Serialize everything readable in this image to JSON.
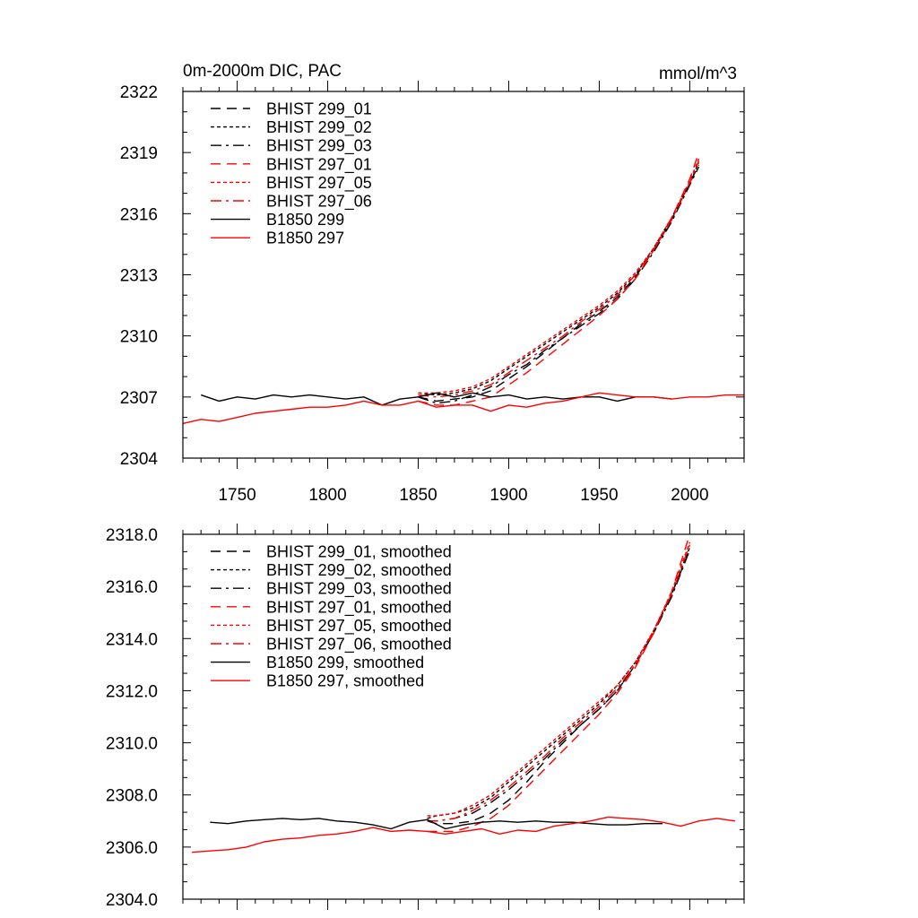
{
  "chart_data": [
    {
      "type": "line",
      "title": "0m-2000m DIC, PAC",
      "units": "mmol/m^3",
      "xlim": [
        1720,
        2030
      ],
      "ylim": [
        2304,
        2322
      ],
      "xticks": [
        1750,
        1800,
        1850,
        1900,
        1950,
        2000
      ],
      "yticks": [
        2304,
        2307,
        2310,
        2313,
        2316,
        2319,
        2322
      ],
      "ytick_decimals": 0,
      "show_xtick_labels": true,
      "legend_position": "top-left",
      "series": [
        {
          "name": "BHIST 299_01",
          "color": "#000000",
          "dash": "longdash",
          "x": [
            1850,
            1860,
            1870,
            1880,
            1890,
            1900,
            1910,
            1920,
            1930,
            1940,
            1950,
            1960,
            1970,
            1980,
            1990,
            2000,
            2005
          ],
          "y": [
            2307.0,
            2306.8,
            2306.9,
            2307.0,
            2307.3,
            2307.9,
            2308.5,
            2309.2,
            2309.9,
            2310.6,
            2311.2,
            2311.9,
            2312.9,
            2314.2,
            2315.7,
            2317.5,
            2318.4
          ]
        },
        {
          "name": "BHIST 299_02",
          "color": "#000000",
          "dash": "dotted",
          "x": [
            1850,
            1860,
            1870,
            1880,
            1890,
            1900,
            1910,
            1920,
            1930,
            1940,
            1950,
            1960,
            1970,
            1980,
            1990,
            2000,
            2005
          ],
          "y": [
            2307.2,
            2307.1,
            2307.2,
            2307.4,
            2307.8,
            2308.4,
            2309.0,
            2309.6,
            2310.2,
            2310.8,
            2311.4,
            2312.1,
            2313.0,
            2314.3,
            2315.8,
            2317.5,
            2318.5
          ]
        },
        {
          "name": "BHIST 299_03",
          "color": "#000000",
          "dash": "dashdot",
          "x": [
            1850,
            1860,
            1870,
            1880,
            1890,
            1900,
            1910,
            1920,
            1930,
            1940,
            1950,
            1960,
            1970,
            1980,
            1990,
            2000,
            2005
          ],
          "y": [
            2307.0,
            2306.7,
            2306.8,
            2307.1,
            2307.5,
            2308.1,
            2308.6,
            2309.3,
            2309.9,
            2310.5,
            2311.1,
            2311.8,
            2312.8,
            2314.1,
            2315.6,
            2317.4,
            2318.3
          ]
        },
        {
          "name": "BHIST 297_01",
          "color": "#ff0000",
          "dash": "longdash",
          "x": [
            1850,
            1860,
            1870,
            1880,
            1890,
            1900,
            1910,
            1920,
            1930,
            1940,
            1950,
            1960,
            1970,
            1980,
            1990,
            2000,
            2005
          ],
          "y": [
            2306.8,
            2306.6,
            2306.6,
            2306.8,
            2307.0,
            2307.6,
            2308.2,
            2308.9,
            2309.6,
            2310.3,
            2311.0,
            2311.8,
            2312.8,
            2314.2,
            2315.8,
            2317.7,
            2319.0
          ]
        },
        {
          "name": "BHIST 297_05",
          "color": "#ff0000",
          "dash": "dotted",
          "x": [
            1850,
            1860,
            1870,
            1880,
            1890,
            1900,
            1910,
            1920,
            1930,
            1940,
            1950,
            1960,
            1970,
            1980,
            1990,
            2000,
            2005
          ],
          "y": [
            2307.2,
            2307.2,
            2307.3,
            2307.5,
            2307.9,
            2308.5,
            2309.1,
            2309.7,
            2310.3,
            2310.9,
            2311.5,
            2312.2,
            2313.1,
            2314.3,
            2315.8,
            2317.6,
            2318.7
          ]
        },
        {
          "name": "BHIST 297_06",
          "color": "#ff0000",
          "dash": "dashdot",
          "x": [
            1850,
            1860,
            1870,
            1880,
            1890,
            1900,
            1910,
            1920,
            1930,
            1940,
            1950,
            1960,
            1970,
            1980,
            1990,
            2000,
            2005
          ],
          "y": [
            2307.1,
            2307.0,
            2307.1,
            2307.3,
            2307.6,
            2308.2,
            2308.8,
            2309.4,
            2310.0,
            2310.7,
            2311.3,
            2312.0,
            2313.0,
            2314.2,
            2315.7,
            2317.5,
            2318.6
          ]
        },
        {
          "name": "B1850 299",
          "color": "#000000",
          "dash": "solid",
          "x": [
            1730,
            1740,
            1750,
            1760,
            1770,
            1780,
            1790,
            1800,
            1810,
            1820,
            1830,
            1840,
            1850,
            1860,
            1870,
            1880,
            1890,
            1900,
            1910,
            1920,
            1930,
            1940,
            1950,
            1960,
            1970,
            1980,
            1990
          ],
          "y": [
            2307.1,
            2306.8,
            2307.0,
            2306.9,
            2307.1,
            2307.0,
            2307.1,
            2307.0,
            2306.9,
            2307.0,
            2306.6,
            2306.9,
            2307.0,
            2307.2,
            2307.0,
            2307.2,
            2307.0,
            2307.1,
            2306.9,
            2307.0,
            2306.9,
            2307.0,
            2307.0,
            2306.8,
            2307.0,
            2307.0,
            2306.9
          ]
        },
        {
          "name": "B1850 297",
          "color": "#ff0000",
          "dash": "solid",
          "x": [
            1720,
            1730,
            1740,
            1750,
            1760,
            1770,
            1780,
            1790,
            1800,
            1810,
            1820,
            1830,
            1840,
            1850,
            1860,
            1870,
            1880,
            1890,
            1900,
            1910,
            1920,
            1930,
            1940,
            1950,
            1960,
            1970,
            1980,
            1990,
            2000,
            2010,
            2020,
            2030
          ],
          "y": [
            2305.7,
            2305.9,
            2305.8,
            2306.0,
            2306.2,
            2306.3,
            2306.4,
            2306.5,
            2306.5,
            2306.6,
            2306.8,
            2306.6,
            2306.6,
            2306.8,
            2306.5,
            2306.6,
            2306.6,
            2306.3,
            2306.6,
            2306.5,
            2306.7,
            2306.8,
            2307.0,
            2307.2,
            2307.1,
            2307.0,
            2307.0,
            2306.9,
            2307.0,
            2307.0,
            2307.1,
            2307.1
          ]
        }
      ]
    },
    {
      "type": "line",
      "title": "",
      "units": "",
      "xlim": [
        1720,
        2030
      ],
      "ylim": [
        2304,
        2318
      ],
      "xticks": [
        1750,
        1800,
        1850,
        1900,
        1950,
        2000
      ],
      "yticks": [
        2304.0,
        2306.0,
        2308.0,
        2310.0,
        2312.0,
        2314.0,
        2316.0,
        2318.0
      ],
      "ytick_decimals": 1,
      "show_xtick_labels": false,
      "legend_position": "top-left",
      "series": [
        {
          "name": "BHIST 299_01, smoothed",
          "color": "#000000",
          "dash": "longdash",
          "x": [
            1855,
            1860,
            1870,
            1880,
            1890,
            1900,
            1910,
            1920,
            1930,
            1940,
            1950,
            1960,
            1970,
            1980,
            1990,
            2000
          ],
          "y": [
            2307.0,
            2306.9,
            2306.9,
            2307.0,
            2307.3,
            2307.8,
            2308.5,
            2309.3,
            2310.0,
            2310.7,
            2311.3,
            2312.0,
            2313.0,
            2314.2,
            2315.7,
            2317.4
          ]
        },
        {
          "name": "BHIST 299_02, smoothed",
          "color": "#000000",
          "dash": "dotted",
          "x": [
            1855,
            1860,
            1870,
            1880,
            1890,
            1900,
            1910,
            1920,
            1930,
            1940,
            1950,
            1960,
            1970,
            1980,
            1990,
            2000
          ],
          "y": [
            2307.1,
            2307.2,
            2307.3,
            2307.5,
            2307.9,
            2308.5,
            2309.1,
            2309.7,
            2310.3,
            2310.9,
            2311.5,
            2312.2,
            2313.1,
            2314.3,
            2315.7,
            2317.5
          ]
        },
        {
          "name": "BHIST 299_03, smoothed",
          "color": "#000000",
          "dash": "dashdot",
          "x": [
            1855,
            1860,
            1870,
            1880,
            1890,
            1900,
            1910,
            1920,
            1930,
            1940,
            1950,
            1960,
            1970,
            1980,
            1990,
            2000
          ],
          "y": [
            2307.0,
            2307.0,
            2307.1,
            2307.3,
            2307.7,
            2308.2,
            2308.8,
            2309.4,
            2310.1,
            2310.7,
            2311.3,
            2312.0,
            2313.0,
            2314.2,
            2315.6,
            2317.4
          ]
        },
        {
          "name": "BHIST 297_01, smoothed",
          "color": "#ff0000",
          "dash": "longdash",
          "x": [
            1855,
            1860,
            1870,
            1880,
            1890,
            1900,
            1910,
            1920,
            1930,
            1940,
            1950,
            1960,
            1970,
            1980,
            1990,
            2000
          ],
          "y": [
            2306.6,
            2306.6,
            2306.6,
            2306.8,
            2307.1,
            2307.6,
            2308.3,
            2309.0,
            2309.7,
            2310.4,
            2311.1,
            2311.9,
            2312.9,
            2314.2,
            2315.8,
            2318.0
          ]
        },
        {
          "name": "BHIST 297_05, smoothed",
          "color": "#ff0000",
          "dash": "dotted",
          "x": [
            1855,
            1860,
            1870,
            1880,
            1890,
            1900,
            1910,
            1920,
            1930,
            1940,
            1950,
            1960,
            1970,
            1980,
            1990,
            2000
          ],
          "y": [
            2307.2,
            2307.2,
            2307.3,
            2307.6,
            2308.0,
            2308.6,
            2309.2,
            2309.8,
            2310.4,
            2311.0,
            2311.6,
            2312.2,
            2313.1,
            2314.3,
            2315.8,
            2317.7
          ]
        },
        {
          "name": "BHIST 297_06, smoothed",
          "color": "#ff0000",
          "dash": "dashdot",
          "x": [
            1855,
            1860,
            1870,
            1880,
            1890,
            1900,
            1910,
            1920,
            1930,
            1940,
            1950,
            1960,
            1970,
            1980,
            1990,
            2000
          ],
          "y": [
            2307.0,
            2307.0,
            2307.1,
            2307.4,
            2307.8,
            2308.3,
            2308.9,
            2309.5,
            2310.2,
            2310.8,
            2311.4,
            2312.1,
            2313.0,
            2314.3,
            2315.7,
            2317.6
          ]
        },
        {
          "name": "B1850 299, smoothed",
          "color": "#000000",
          "dash": "solid",
          "x": [
            1735,
            1745,
            1755,
            1765,
            1775,
            1785,
            1795,
            1805,
            1815,
            1825,
            1835,
            1845,
            1855,
            1865,
            1875,
            1885,
            1895,
            1905,
            1915,
            1925,
            1935,
            1945,
            1955,
            1965,
            1975,
            1985
          ],
          "y": [
            2306.95,
            2306.9,
            2307.0,
            2307.05,
            2307.1,
            2307.05,
            2307.1,
            2307.0,
            2306.95,
            2306.85,
            2306.7,
            2306.95,
            2307.05,
            2306.7,
            2306.85,
            2306.95,
            2307.0,
            2306.95,
            2307.0,
            2306.95,
            2306.95,
            2306.9,
            2306.85,
            2306.85,
            2306.9,
            2306.9
          ]
        },
        {
          "name": "B1850 297, smoothed",
          "color": "#ff0000",
          "dash": "solid",
          "x": [
            1725,
            1735,
            1745,
            1755,
            1765,
            1775,
            1785,
            1795,
            1805,
            1815,
            1825,
            1835,
            1845,
            1855,
            1865,
            1875,
            1885,
            1895,
            1905,
            1915,
            1925,
            1935,
            1945,
            1955,
            1965,
            1975,
            1985,
            1995,
            2005,
            2015,
            2025
          ],
          "y": [
            2305.8,
            2305.85,
            2305.9,
            2306.0,
            2306.2,
            2306.3,
            2306.35,
            2306.45,
            2306.5,
            2306.6,
            2306.75,
            2306.6,
            2306.65,
            2306.6,
            2306.5,
            2306.6,
            2306.7,
            2306.5,
            2306.65,
            2306.6,
            2306.8,
            2306.9,
            2307.0,
            2307.15,
            2307.1,
            2307.05,
            2306.95,
            2306.8,
            2307.0,
            2307.1,
            2307.0
          ]
        }
      ]
    }
  ]
}
